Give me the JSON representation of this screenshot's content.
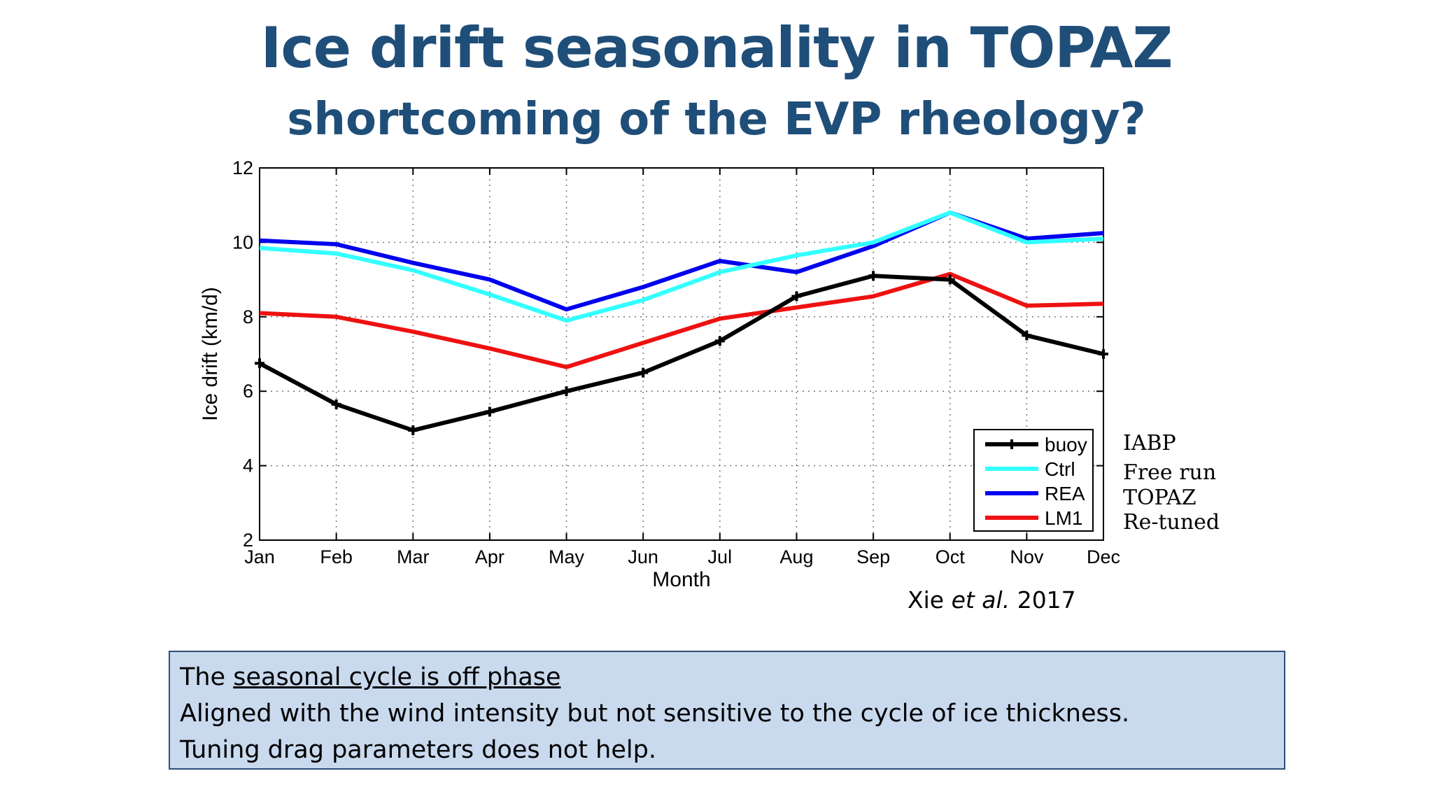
{
  "slide": {
    "title": "Ice drift seasonality in TOPAZ",
    "subtitle": "shortcoming of the EVP rheology?",
    "citation_prefix": "Xie ",
    "citation_italic": "et al.",
    "citation_suffix": " 2017",
    "legend_notes": [
      "IABP",
      "Free run",
      "TOPAZ",
      "Re-tuned"
    ],
    "note": {
      "line1_prefix": "The ",
      "line1_underlined": "seasonal cycle is off phase",
      "line2": "Aligned with the wind intensity but not sensitive to the cycle of ice thickness.",
      "line3": "Tuning drag parameters does not help."
    }
  },
  "chart_data": {
    "type": "line",
    "categories": [
      "Jan",
      "Feb",
      "Mar",
      "Apr",
      "May",
      "Jun",
      "Jul",
      "Aug",
      "Sep",
      "Oct",
      "Nov",
      "Dec"
    ],
    "xlabel": "Month",
    "ylabel": "Ice drift (km/d)",
    "ylim": [
      2,
      12
    ],
    "yticks": [
      2,
      4,
      6,
      8,
      10,
      12
    ],
    "grid": true,
    "legend_position": "bottom-right",
    "series": [
      {
        "name": "buoy",
        "color": "#000000",
        "marker": "plus",
        "values": [
          6.75,
          5.65,
          4.95,
          5.45,
          6.0,
          6.5,
          7.35,
          8.55,
          9.1,
          9.0,
          7.5,
          7.0
        ]
      },
      {
        "name": "Ctrl",
        "color": "#33ffff",
        "values": [
          9.85,
          9.7,
          9.25,
          8.6,
          7.9,
          8.45,
          9.2,
          9.65,
          10.0,
          10.8,
          10.0,
          10.1
        ]
      },
      {
        "name": "REA",
        "color": "#0000ee",
        "values": [
          10.05,
          9.95,
          9.45,
          9.0,
          8.2,
          8.8,
          9.5,
          9.2,
          9.9,
          10.8,
          10.1,
          10.25
        ]
      },
      {
        "name": "LM1",
        "color": "#ee1111",
        "values": [
          8.1,
          8.0,
          7.6,
          7.15,
          6.65,
          7.3,
          7.95,
          8.25,
          8.55,
          9.15,
          8.3,
          8.35
        ]
      }
    ]
  }
}
